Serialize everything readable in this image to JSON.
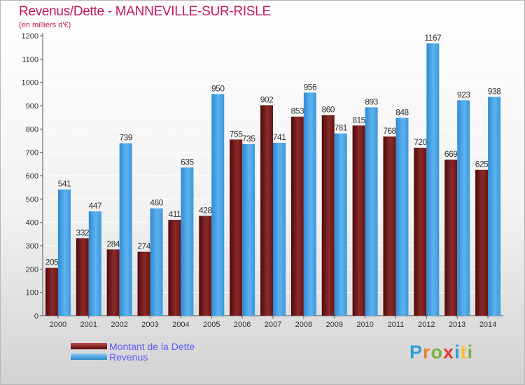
{
  "chart_data": {
    "type": "bar",
    "title": "Revenus/Dette - MANNEVILLE-SUR-RISLE",
    "subtitle": "(en milliers d'€)",
    "categories": [
      "2000",
      "2001",
      "2002",
      "2003",
      "2004",
      "2005",
      "2006",
      "2007",
      "2008",
      "2009",
      "2010",
      "2011",
      "2012",
      "2013",
      "2014"
    ],
    "series": [
      {
        "name": "Montant de la Dette",
        "color": "#7a1a1a",
        "values": [
          205,
          332,
          284,
          274,
          411,
          428,
          755,
          902,
          853,
          860,
          815,
          768,
          720,
          669,
          625
        ]
      },
      {
        "name": "Revenus",
        "color": "#4aa3e6",
        "values": [
          541,
          447,
          739,
          460,
          635,
          950,
          735,
          741,
          956,
          781,
          893,
          848,
          1167,
          923,
          938
        ]
      }
    ],
    "ylim": [
      0,
      1200
    ],
    "yticks": [
      0,
      100,
      200,
      300,
      400,
      500,
      600,
      700,
      800,
      900,
      1000,
      1100,
      1200
    ],
    "grid": true,
    "legend": "bottom-left"
  },
  "logo": {
    "text": "Proxiti",
    "letters": [
      "P",
      "r",
      "o",
      "x",
      "i",
      "t",
      "i"
    ],
    "colors": [
      "#2e9fd8",
      "#e8812a",
      "#7cb342",
      "#e53935",
      "#2e9fd8",
      "#fbc02d",
      "#7cb342"
    ]
  }
}
